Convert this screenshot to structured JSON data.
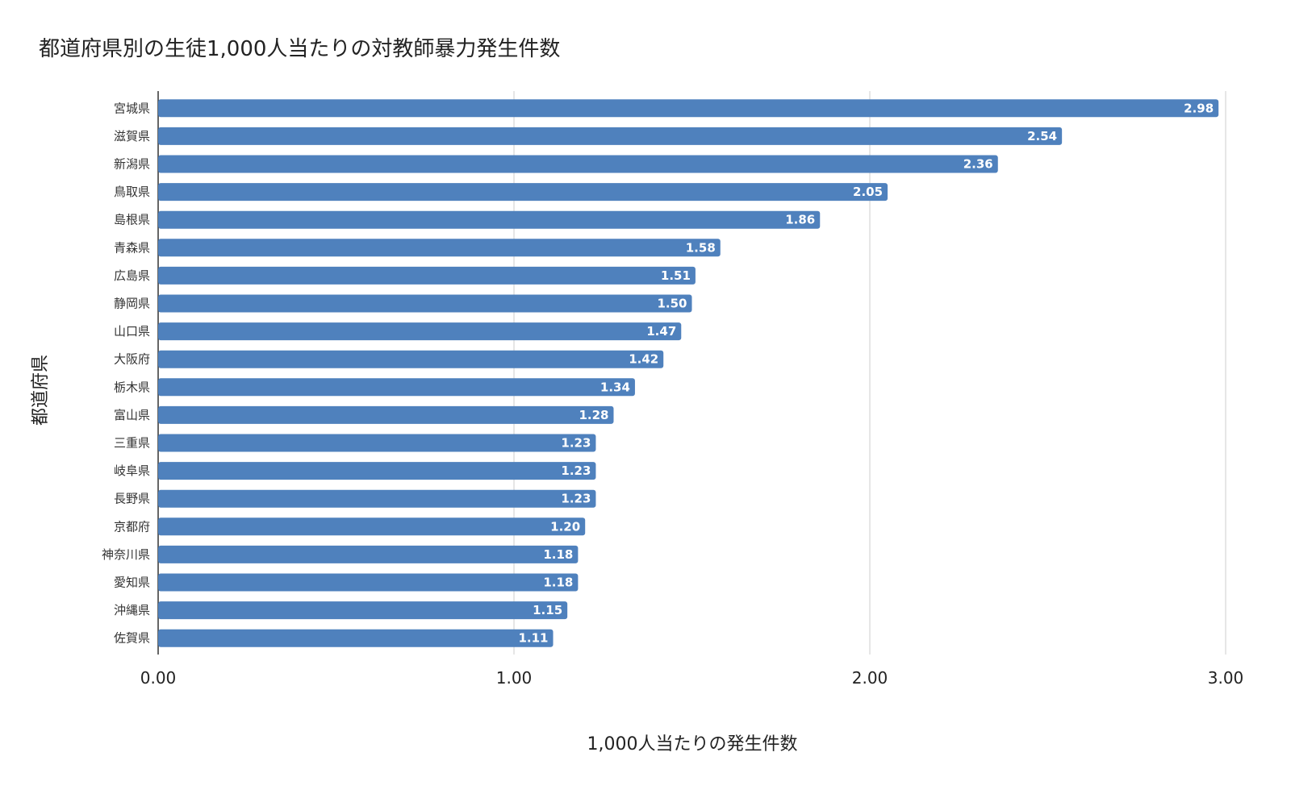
{
  "chart_data": {
    "type": "bar",
    "orientation": "horizontal",
    "title": "都道府県別の生徒1,000人当たりの対教師暴力発生件数",
    "xlabel": "1,000人当たりの発生件数",
    "ylabel": "都道府県",
    "xlim": [
      0,
      3
    ],
    "ticks": [
      "0.00",
      "1.00",
      "2.00",
      "3.00"
    ],
    "grid": true,
    "legend": "none",
    "bar_color": "#4f81bd",
    "categories": [
      "宮城県",
      "滋賀県",
      "新潟県",
      "鳥取県",
      "島根県",
      "青森県",
      "広島県",
      "静岡県",
      "山口県",
      "大阪府",
      "栃木県",
      "富山県",
      "三重県",
      "岐阜県",
      "長野県",
      "京都府",
      "神奈川県",
      "愛知県",
      "沖縄県",
      "佐賀県"
    ],
    "values": [
      2.98,
      2.54,
      2.36,
      2.05,
      1.86,
      1.58,
      1.51,
      1.5,
      1.47,
      1.42,
      1.34,
      1.28,
      1.23,
      1.23,
      1.23,
      1.2,
      1.18,
      1.18,
      1.15,
      1.11
    ],
    "value_labels": [
      "2.98",
      "2.54",
      "2.36",
      "2.05",
      "1.86",
      "1.58",
      "1.51",
      "1.50",
      "1.47",
      "1.42",
      "1.34",
      "1.28",
      "1.23",
      "1.23",
      "1.23",
      "1.20",
      "1.18",
      "1.18",
      "1.15",
      "1.11"
    ]
  }
}
